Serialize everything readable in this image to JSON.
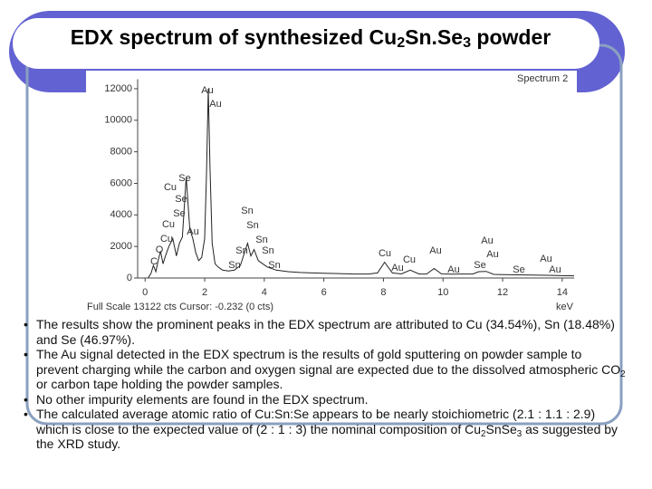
{
  "title": [
    "EDX spectrum of synthesized Cu",
    "2",
    "Sn.Se",
    "3",
    " powder"
  ],
  "bullets": [
    [
      "The results show the prominent peaks in the EDX spectrum are attributed to Cu (34.54%), Sn (18.48%) and Se (46.97%)."
    ],
    [
      "The Au signal detected in the EDX spectrum is the results of gold sputtering on powder sample to prevent charging while the carbon and oxygen signal are expected due to the dissolved atmospheric CO",
      "2",
      " or carbon tape holding the powder samples."
    ],
    [
      "No other impurity elements are found in the EDX spectrum."
    ],
    [
      "The calculated average atomic ratio of Cu:Sn:Se appears to be nearly stoichiometric (2.1 : 1.1 : 2.9) which is close to the expected value of (2 : 1 : 3) the nominal composition of Cu",
      "2",
      "SnSe",
      "3",
      " as suggested by the XRD study."
    ]
  ],
  "chart_data": {
    "type": "line",
    "title": "Spectrum 2",
    "footer": "Full Scale 13122 cts Cursor: -0.232  (0 cts)",
    "x_label": "keV",
    "color": "#222222",
    "x": [
      0.1,
      0.2,
      0.28,
      0.36,
      0.45,
      0.52,
      0.6,
      0.7,
      0.8,
      0.93,
      1.05,
      1.15,
      1.25,
      1.38,
      1.5,
      1.6,
      1.7,
      1.8,
      1.9,
      2.0,
      2.06,
      2.12,
      2.18,
      2.25,
      2.35,
      2.45,
      2.6,
      2.8,
      3.0,
      3.2,
      3.3,
      3.44,
      3.55,
      3.66,
      3.8,
      3.95,
      4.1,
      4.4,
      4.8,
      5.2,
      5.6,
      6.0,
      6.5,
      7.0,
      7.5,
      7.8,
      8.04,
      8.3,
      8.6,
      8.9,
      9.2,
      9.45,
      9.7,
      9.95,
      10.3,
      10.7,
      11.0,
      11.2,
      11.45,
      11.7,
      12.0,
      12.5,
      13.0,
      13.5,
      14.0,
      14.4
    ],
    "values": [
      0,
      300,
      800,
      400,
      1200,
      1700,
      900,
      1500,
      2000,
      2500,
      1400,
      2200,
      2600,
      6400,
      3100,
      2500,
      1600,
      1100,
      1300,
      2500,
      6500,
      12000,
      7000,
      2200,
      900,
      700,
      500,
      450,
      500,
      800,
      1400,
      2200,
      1400,
      1800,
      1100,
      900,
      700,
      500,
      400,
      350,
      320,
      300,
      280,
      250,
      250,
      320,
      1000,
      320,
      260,
      500,
      250,
      250,
      600,
      260,
      240,
      250,
      250,
      400,
      420,
      230,
      220,
      200,
      190,
      170,
      150,
      140
    ],
    "xlim": [
      -0.25,
      14.4
    ],
    "ylim": [
      0,
      12600
    ],
    "xticks": [
      0,
      2,
      4,
      6,
      8,
      10,
      12,
      14
    ],
    "yticks": [
      0,
      2000,
      4000,
      6000,
      8000,
      10000,
      12000
    ],
    "peak_labels": [
      "Au",
      "Au",
      "Se",
      "Cu",
      "Se",
      "Se",
      "Cu",
      "Au",
      "Cu",
      "O",
      "C",
      "Sn",
      "Sn",
      "Sn",
      "Sn",
      "Sn",
      "Sn",
      "Sn",
      "Cu",
      "Au",
      "Cu",
      "Au",
      "Au",
      "Au",
      "Au",
      "Se",
      "Se",
      "Au",
      "Au"
    ]
  }
}
